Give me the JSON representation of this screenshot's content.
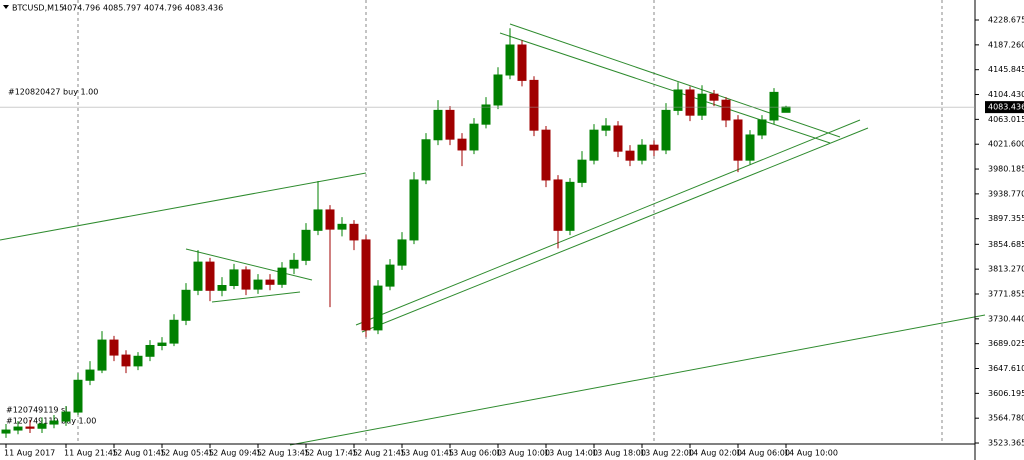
{
  "chart_data": {
    "type": "candlestick",
    "symbol": "BTCUSD,M15",
    "annotations": [
      "#120820427 buy 1.00",
      "#120749119 sl",
      "#120749119 buy 1.00"
    ],
    "categories": [
      "11 Aug 2017",
      null,
      null,
      null,
      null,
      "11 Aug 21:45",
      null,
      null,
      null,
      "12 Aug 01:45",
      null,
      null,
      null,
      "12 Aug 05:45",
      null,
      null,
      null,
      "12 Aug 09:45",
      null,
      null,
      null,
      "12 Aug 13:45",
      null,
      null,
      null,
      "12 Aug 17:45",
      null,
      null,
      null,
      "12 Aug 21:45",
      null,
      null,
      null,
      "13 Aug 01:45",
      null,
      null,
      null,
      "13 Aug 06:00",
      null,
      null,
      null,
      "13 Aug 10:00",
      null,
      null,
      null,
      "13 Aug 14:00",
      null,
      null,
      null,
      "13 Aug 18:00",
      null,
      null,
      null,
      "13 Aug 22:00",
      null,
      null,
      null,
      "14 Aug 02:00",
      null,
      null,
      null,
      "14 Aug 06:00",
      null,
      null,
      null,
      "14 Aug 10:00"
    ],
    "open": [
      3540,
      3545,
      3550,
      3548,
      3555,
      3560,
      3575,
      3628,
      3645,
      3695,
      3670,
      3652,
      3668,
      3686,
      3690,
      3728,
      3778,
      3825,
      3778,
      3786,
      3812,
      3780,
      3795,
      3788,
      3815,
      3828,
      3878,
      3912,
      3880,
      3888,
      3862,
      3712,
      3785,
      3820,
      3862,
      3962,
      4029,
      4078,
      4030,
      4012,
      4055,
      4087,
      4137,
      4187,
      4128,
      4045,
      3962,
      3878,
      3958,
      3995,
      4045,
      4052,
      4010,
      3995,
      4020,
      4012,
      4078,
      4112,
      4070,
      4105,
      4095,
      4062,
      3995,
      4037,
      4062,
      4074.796
    ],
    "high": [
      3555,
      3560,
      3562,
      3566,
      3570,
      3585,
      3640,
      3660,
      3710,
      3702,
      3678,
      3675,
      3695,
      3700,
      3738,
      3790,
      3845,
      3832,
      3800,
      3822,
      3818,
      3805,
      3805,
      3825,
      3840,
      3890,
      3960,
      3920,
      3900,
      3895,
      3870,
      3795,
      3830,
      3875,
      3975,
      4040,
      4095,
      4085,
      4040,
      4065,
      4100,
      4150,
      4215,
      4195,
      4135,
      4052,
      3970,
      3965,
      4010,
      4055,
      4065,
      4060,
      4020,
      4030,
      4028,
      4090,
      4125,
      4118,
      4120,
      4112,
      4100,
      4070,
      4045,
      4070,
      4115,
      4085.797
    ],
    "low": [
      3532,
      3538,
      3540,
      3540,
      3548,
      3552,
      3570,
      3620,
      3640,
      3660,
      3640,
      3645,
      3660,
      3678,
      3685,
      3720,
      3770,
      3760,
      3768,
      3780,
      3770,
      3772,
      3778,
      3782,
      3805,
      3820,
      3870,
      3750,
      3868,
      3845,
      3700,
      3705,
      3778,
      3812,
      3855,
      3955,
      4020,
      4020,
      3985,
      4005,
      4048,
      4080,
      4130,
      4118,
      4035,
      3950,
      3848,
      3870,
      3950,
      3988,
      4035,
      4000,
      3985,
      3988,
      4002,
      4005,
      4070,
      4060,
      4062,
      4085,
      4050,
      3975,
      3988,
      4030,
      4055,
      4074.796
    ],
    "close": [
      3545,
      3550,
      3548,
      3555,
      3560,
      3575,
      3628,
      3645,
      3695,
      3670,
      3652,
      3668,
      3686,
      3690,
      3728,
      3778,
      3825,
      3778,
      3786,
      3812,
      3780,
      3795,
      3788,
      3815,
      3828,
      3878,
      3912,
      3880,
      3888,
      3862,
      3712,
      3785,
      3820,
      3862,
      3962,
      4029,
      4078,
      4030,
      4012,
      4055,
      4087,
      4137,
      4187,
      4128,
      4045,
      3962,
      3878,
      3958,
      3995,
      4045,
      4052,
      4010,
      3995,
      4020,
      4012,
      4078,
      4112,
      4070,
      4105,
      4095,
      4062,
      3995,
      4037,
      4062,
      4108,
      4083.436
    ],
    "up_color": "#008000",
    "down_color": "#a00000",
    "ylim": [
      3508.4,
      4248.7
    ],
    "yticks": [
      4228.675,
      {
        "value": 4187.26,
        "label": "4187.260"
      },
      4145.845,
      {
        "value": 4104.43,
        "label": "4104.430"
      },
      4063.015,
      {
        "value": 4021.6,
        "label": "4021.600"
      },
      3980.185,
      {
        "value": 3938.77,
        "label": "3938.770"
      },
      3897.355,
      3854.685,
      {
        "value": 3813.27,
        "label": "3813.270"
      },
      3771.855,
      {
        "value": 3730.44,
        "label": "3730.440"
      },
      3689.025,
      {
        "value": 3647.61,
        "label": "3647.610"
      },
      3606.195,
      {
        "value": 3564.78,
        "label": "3564.780"
      },
      3523.365
    ]
  }
}
